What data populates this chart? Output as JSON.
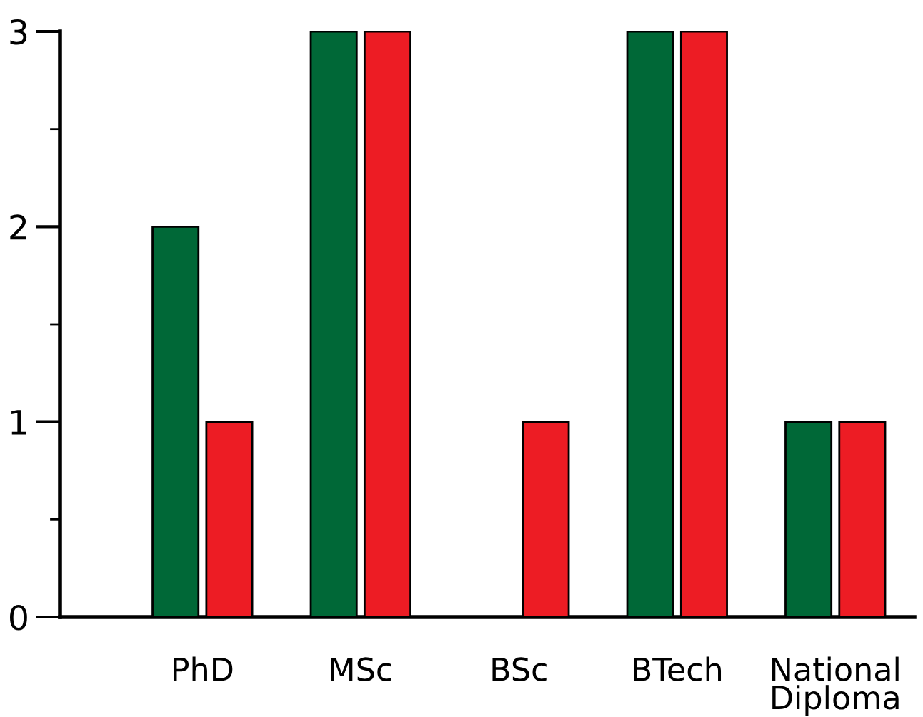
{
  "chart_data": {
    "type": "bar",
    "categories": [
      "PhD",
      "MSc",
      "BSc",
      "BTech",
      "National Diploma"
    ],
    "series": [
      {
        "color": "#006837",
        "values": [
          2,
          3,
          0,
          3,
          1
        ]
      },
      {
        "color": "#ed1c24",
        "values": [
          1,
          3,
          1,
          3,
          1
        ]
      }
    ],
    "ylim": [
      0,
      3
    ],
    "yticks": [
      0,
      1,
      2,
      3
    ],
    "grid": false,
    "legend": false
  }
}
